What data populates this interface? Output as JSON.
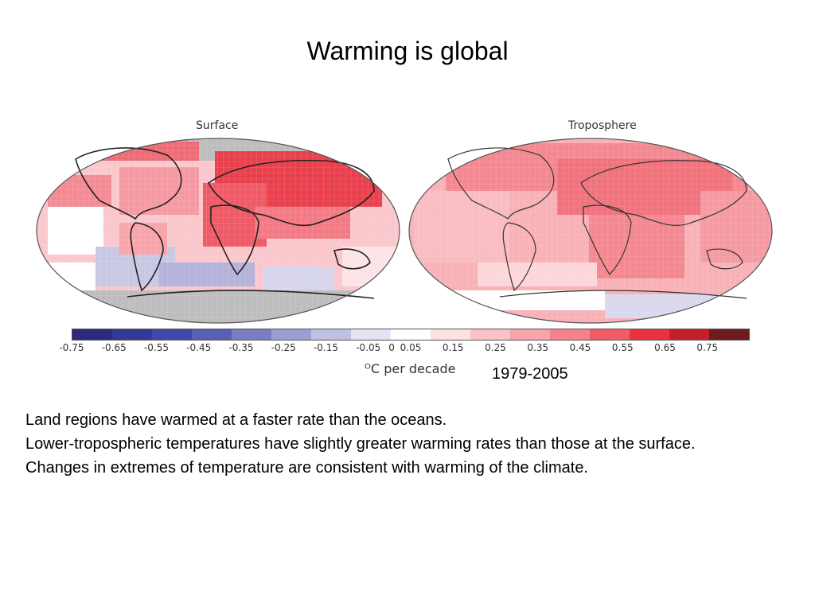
{
  "slide": {
    "title": "Warming is global",
    "period": "1979-2005"
  },
  "figure": {
    "maps": [
      {
        "label": "Surface"
      },
      {
        "label": "Troposphere"
      }
    ],
    "colorbar": {
      "unit": "ᴼC per decade",
      "tick_labels": [
        "-0.75",
        "-0.65",
        "-0.55",
        "-0.45",
        "-0.35",
        "-0.25",
        "-0.15",
        "-0.05",
        "0",
        "0.05",
        "0.15",
        "0.25",
        "0.35",
        "0.45",
        "0.55",
        "0.65",
        "0.75"
      ],
      "colors": [
        "#2b2a7d",
        "#343897",
        "#3f47a8",
        "#5a5fb6",
        "#7b7dc3",
        "#9c9ed2",
        "#bfc0e2",
        "#e3e3f3",
        "#ffffff",
        "#fde0e2",
        "#fbc3c8",
        "#f8a4ab",
        "#f5828c",
        "#f25b68",
        "#e8333f",
        "#c41f2b",
        "#6e1a1e"
      ]
    }
  },
  "bullets": [
    "Land regions have warmed at a faster rate than the oceans.",
    "Lower-tropospheric temperatures have slightly greater warming rates than those at the surface.",
    "Changes in extremes of temperature are consistent with warming of the climate."
  ]
}
